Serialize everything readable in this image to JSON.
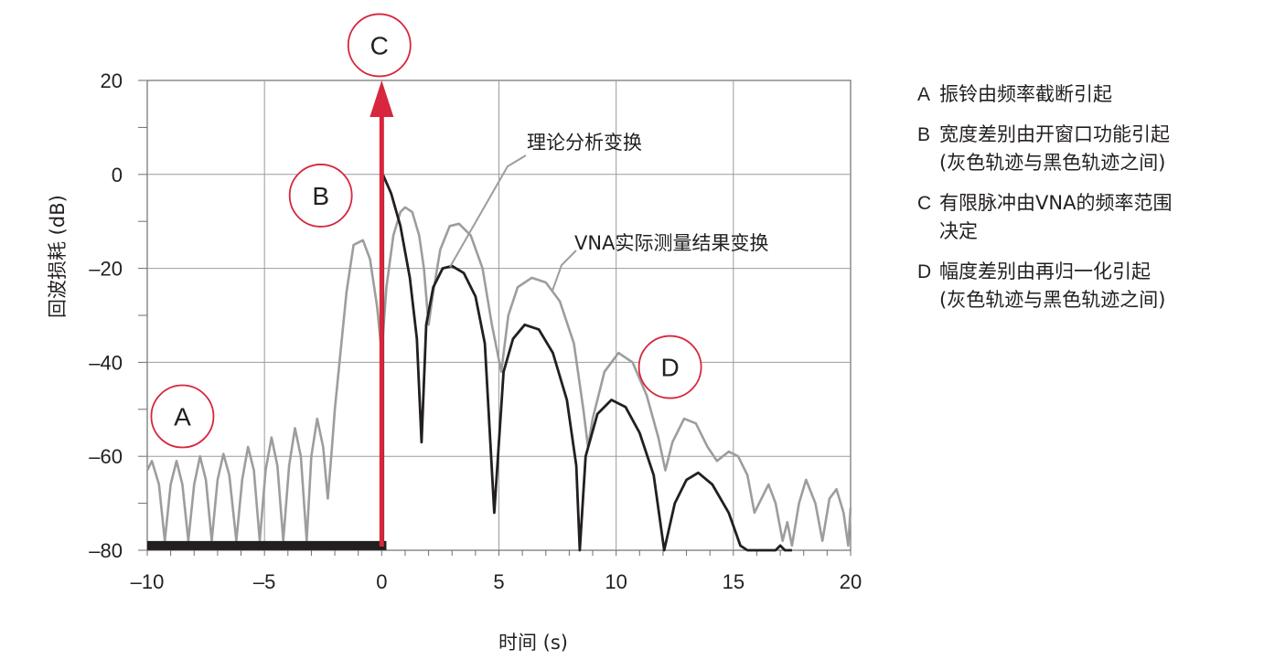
{
  "chart_data": {
    "type": "line",
    "title": "",
    "xlabel": "时间 (s)",
    "ylabel": "回波损耗 (dB)",
    "xlim": [
      -10,
      20
    ],
    "ylim": [
      -80,
      20
    ],
    "x_ticks": [
      -10,
      -5,
      0,
      5,
      10,
      15,
      20
    ],
    "x_tick_labels": [
      "–10",
      "–5",
      "0",
      "5",
      "10",
      "15",
      "20"
    ],
    "y_ticks": [
      20,
      0,
      -20,
      -40,
      -60,
      -80
    ],
    "y_tick_labels": [
      "20",
      "0",
      "–20",
      "–40",
      "–60",
      "–80"
    ],
    "grid": true,
    "series": [
      {
        "name": "VNA实际测量结果变换",
        "color": "#9d9d9d",
        "points": [
          [
            -10,
            -63
          ],
          [
            -9.8,
            -61
          ],
          [
            -9.5,
            -66
          ],
          [
            -9.25,
            -78
          ],
          [
            -9.0,
            -66
          ],
          [
            -8.75,
            -61
          ],
          [
            -8.5,
            -66
          ],
          [
            -8.25,
            -78
          ],
          [
            -8.0,
            -66
          ],
          [
            -7.75,
            -60
          ],
          [
            -7.5,
            -65
          ],
          [
            -7.25,
            -78
          ],
          [
            -7.0,
            -65
          ],
          [
            -6.75,
            -59.5
          ],
          [
            -6.5,
            -64
          ],
          [
            -6.2,
            -78
          ],
          [
            -5.95,
            -65
          ],
          [
            -5.7,
            -58
          ],
          [
            -5.45,
            -63
          ],
          [
            -5.2,
            -78
          ],
          [
            -4.95,
            -63
          ],
          [
            -4.7,
            -56
          ],
          [
            -4.45,
            -62
          ],
          [
            -4.2,
            -78
          ],
          [
            -3.95,
            -62
          ],
          [
            -3.7,
            -54
          ],
          [
            -3.45,
            -60
          ],
          [
            -3.2,
            -78
          ],
          [
            -3.0,
            -60
          ],
          [
            -2.75,
            -52
          ],
          [
            -2.5,
            -58
          ],
          [
            -2.3,
            -69
          ],
          [
            -2.15,
            -60
          ],
          [
            -2.0,
            -50
          ],
          [
            -1.8,
            -40
          ],
          [
            -1.5,
            -25
          ],
          [
            -1.2,
            -15
          ],
          [
            -0.8,
            -14
          ],
          [
            -0.5,
            -18
          ],
          [
            -0.2,
            -28
          ],
          [
            0.0,
            -38
          ],
          [
            0.2,
            -24
          ],
          [
            0.5,
            -13
          ],
          [
            0.8,
            -8
          ],
          [
            1.0,
            -7
          ],
          [
            1.3,
            -8
          ],
          [
            1.6,
            -13
          ],
          [
            1.8,
            -20
          ],
          [
            2.0,
            -32
          ],
          [
            2.2,
            -25
          ],
          [
            2.5,
            -16
          ],
          [
            2.9,
            -11
          ],
          [
            3.3,
            -10.5
          ],
          [
            3.8,
            -13
          ],
          [
            4.3,
            -20
          ],
          [
            4.7,
            -32
          ],
          [
            5.1,
            -42
          ],
          [
            5.4,
            -30
          ],
          [
            5.8,
            -24
          ],
          [
            6.4,
            -22
          ],
          [
            7.0,
            -23
          ],
          [
            7.6,
            -27
          ],
          [
            8.2,
            -36
          ],
          [
            8.6,
            -50
          ],
          [
            8.8,
            -58
          ],
          [
            9.0,
            -52
          ],
          [
            9.5,
            -42
          ],
          [
            10.1,
            -38
          ],
          [
            10.7,
            -40
          ],
          [
            11.3,
            -47
          ],
          [
            11.8,
            -56
          ],
          [
            12.1,
            -63
          ],
          [
            12.4,
            -57
          ],
          [
            12.9,
            -52
          ],
          [
            13.4,
            -53
          ],
          [
            13.9,
            -58
          ],
          [
            14.3,
            -61
          ],
          [
            14.8,
            -59
          ],
          [
            15.2,
            -60
          ],
          [
            15.6,
            -64
          ],
          [
            15.9,
            -72
          ],
          [
            16.1,
            -70
          ],
          [
            16.5,
            -66
          ],
          [
            16.8,
            -70
          ],
          [
            17.1,
            -78
          ],
          [
            17.3,
            -74
          ],
          [
            17.5,
            -79
          ],
          [
            17.8,
            -70
          ],
          [
            18.1,
            -65
          ],
          [
            18.5,
            -70
          ],
          [
            18.8,
            -78
          ],
          [
            19.1,
            -69
          ],
          [
            19.4,
            -67
          ],
          [
            19.7,
            -72
          ],
          [
            19.9,
            -79
          ],
          [
            20.0,
            -71
          ]
        ]
      },
      {
        "name": "理论分析变换",
        "color": "#231f20",
        "points": [
          [
            0.05,
            0
          ],
          [
            0.4,
            -4
          ],
          [
            0.8,
            -11
          ],
          [
            1.2,
            -22
          ],
          [
            1.5,
            -35
          ],
          [
            1.7,
            -57
          ],
          [
            1.9,
            -32
          ],
          [
            2.2,
            -24
          ],
          [
            2.6,
            -20
          ],
          [
            3.0,
            -19.5
          ],
          [
            3.5,
            -21
          ],
          [
            4.0,
            -26
          ],
          [
            4.4,
            -36
          ],
          [
            4.8,
            -72
          ],
          [
            5.2,
            -42
          ],
          [
            5.6,
            -35
          ],
          [
            6.1,
            -32
          ],
          [
            6.7,
            -33
          ],
          [
            7.3,
            -38
          ],
          [
            7.9,
            -48
          ],
          [
            8.3,
            -62
          ],
          [
            8.45,
            -80
          ],
          [
            8.7,
            -60
          ],
          [
            9.2,
            -51
          ],
          [
            9.8,
            -48
          ],
          [
            10.4,
            -49.5
          ],
          [
            11.0,
            -55
          ],
          [
            11.6,
            -64
          ],
          [
            12.05,
            -80
          ],
          [
            12.5,
            -70
          ],
          [
            13.0,
            -65
          ],
          [
            13.5,
            -63.5
          ],
          [
            14.1,
            -66
          ],
          [
            14.8,
            -72
          ],
          [
            15.3,
            -79
          ],
          [
            15.6,
            -80
          ],
          [
            16.8,
            -80
          ],
          [
            17.0,
            -79
          ],
          [
            17.2,
            -80
          ],
          [
            17.5,
            -80
          ]
        ]
      }
    ],
    "impulse": {
      "x": 0,
      "y_top": 20,
      "color": "#d7263d"
    },
    "baseline_bar": {
      "from": -10,
      "to": 0.2,
      "y": -79
    },
    "callouts": [
      {
        "letter": "A",
        "x": -8.5,
        "y": -51.5
      },
      {
        "letter": "B",
        "x": -2.6,
        "y": -4.5
      },
      {
        "letter": "C",
        "x": -0.1,
        "y": 27.5
      },
      {
        "letter": "D",
        "x": 12.3,
        "y": -41
      }
    ],
    "annotations": [
      {
        "text": "理论分析变换"
      },
      {
        "text": "VNA实际测量结果变换"
      }
    ]
  },
  "legend": [
    {
      "key": "A",
      "lines": [
        "振铃由频率截断引起"
      ]
    },
    {
      "key": "B",
      "lines": [
        "宽度差别由开窗口功能引起",
        "(灰色轨迹与黑色轨迹之间)"
      ]
    },
    {
      "key": "C",
      "lines": [
        "有限脉冲由VNA的频率范围",
        "决定"
      ]
    },
    {
      "key": "D",
      "lines": [
        "幅度差别由再归一化引起",
        "(灰色轨迹与黑色轨迹之间)"
      ]
    }
  ]
}
